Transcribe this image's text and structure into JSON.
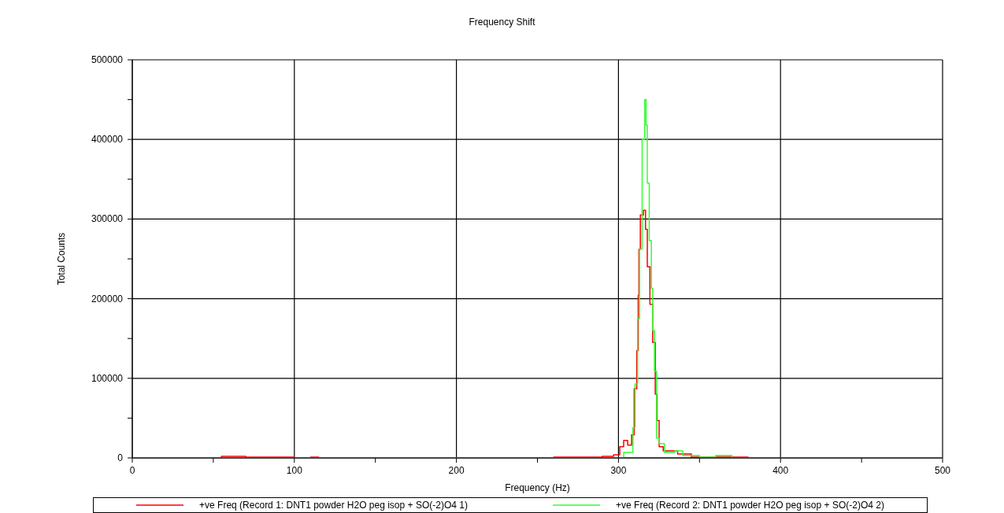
{
  "chart_data": {
    "type": "step",
    "title": "Frequency Shift",
    "xlabel": "Frequency (Hz)",
    "ylabel": "Total Counts",
    "xlim": [
      0,
      500
    ],
    "xticks": [
      0,
      {
        "value": 50,
        "label": null
      },
      100,
      {
        "value": 150,
        "label": null
      },
      200,
      {
        "value": 250,
        "label": null
      },
      300,
      {
        "value": 350,
        "label": null
      },
      400,
      {
        "value": 450,
        "label": null
      },
      500
    ],
    "ylim": [
      0,
      500000
    ],
    "yticks": [
      0,
      {
        "value": 50000,
        "label": null
      },
      100000,
      {
        "value": 150000,
        "label": null
      },
      200000,
      {
        "value": 250000,
        "label": null
      },
      300000,
      {
        "value": 350000,
        "label": null
      },
      400000,
      {
        "value": 450000,
        "label": null
      },
      500000
    ],
    "grid": true,
    "legend": "bottom",
    "marker": "none",
    "line_style": "solid",
    "series": [
      {
        "name": "+ve Freq (Record 1: DNT1 powder H2O peg isop + SO(-2)O4 1)",
        "color": "#ff0000",
        "x": [
          0,
          50,
          55,
          65,
          70,
          90,
          100,
          110,
          115,
          260,
          280,
          290,
          297,
          300.8,
          303.2,
          305.7,
          308.1,
          309.7,
          311.3,
          312.2,
          312.6,
          313.5,
          315.4,
          316.7,
          317.8,
          319.4,
          321.1,
          322.7,
          323.8,
          325.1,
          327.6,
          336.5,
          345,
          360,
          370,
          380,
          500
        ],
        "values": [
          0,
          0,
          2000,
          2000,
          1000,
          1000,
          0,
          1000,
          0,
          1000,
          1000,
          2000,
          4000,
          14000,
          22000,
          16000,
          29000,
          87000,
          135000,
          204000,
          262000,
          305000,
          311000,
          287000,
          240000,
          193000,
          145000,
          80000,
          47000,
          14000,
          9000,
          5000,
          1000,
          2000,
          1000,
          0,
          0
        ]
      },
      {
        "name": "+ve Freq (Record 2: DNT1 powder H2O peg isop + SO(-2)O4 2)",
        "color": "#33ff33",
        "x": [
          0,
          300,
          303.2,
          307.3,
          308.9,
          310.2,
          311.8,
          313,
          314.6,
          316.2,
          317,
          317.8,
          319,
          320.3,
          321.1,
          322.2,
          323.5,
          325.1,
          328.4,
          334.8,
          339.7,
          350,
          360,
          370,
          500
        ],
        "values": [
          0,
          0,
          7000,
          7000,
          38000,
          93000,
          175000,
          262000,
          400000,
          450000,
          418000,
          345000,
          273000,
          213000,
          160000,
          109000,
          25000,
          18000,
          7000,
          9000,
          3000,
          1000,
          3000,
          0,
          0
        ]
      }
    ]
  }
}
